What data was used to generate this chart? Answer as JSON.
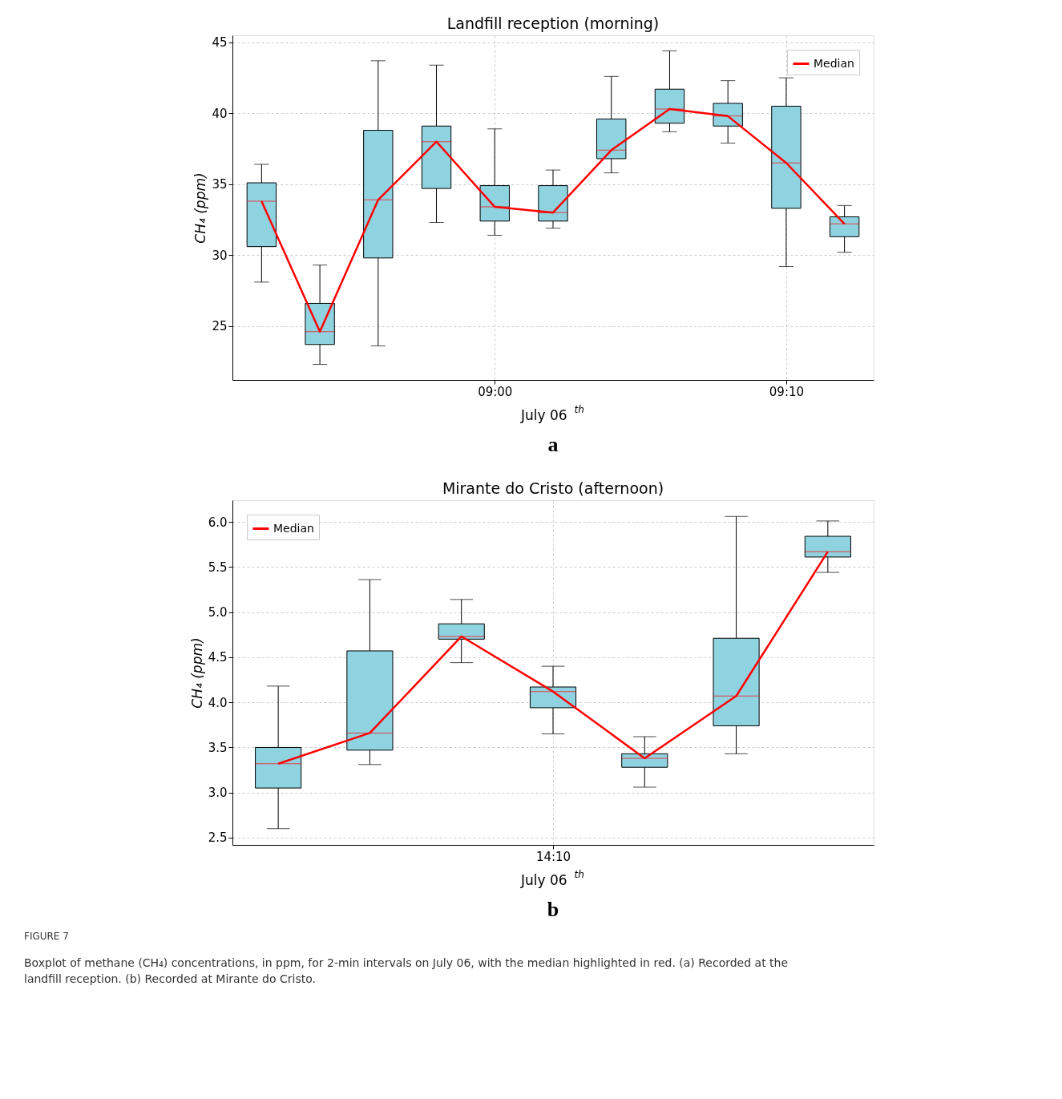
{
  "chart_data": [
    {
      "type": "box",
      "title": "Landfill reception (morning)",
      "xlabel": "July 06$^{th}$",
      "ylabel": "CH₄ (ppm)",
      "color": "#8fd3e0",
      "x": [
        8.866667,
        8.9,
        8.933333,
        8.966667,
        9,
        9.033333,
        9.066667,
        9.1,
        9.133333,
        9.166667,
        9.2
      ],
      "boxes": [
        {
          "low": 28.1,
          "q1": 30.6,
          "median": 33.8,
          "q3": 35.1,
          "high": 36.4
        },
        {
          "low": 22.3,
          "q1": 23.7,
          "median": 24.6,
          "q3": 26.6,
          "high": 29.3
        },
        {
          "low": 23.6,
          "q1": 29.8,
          "median": 33.9,
          "q3": 38.8,
          "high": 43.7
        },
        {
          "low": 32.3,
          "q1": 34.7,
          "median": 38.0,
          "q3": 39.1,
          "high": 43.4
        },
        {
          "low": 31.4,
          "q1": 32.4,
          "median": 33.4,
          "q3": 34.9,
          "high": 38.9
        },
        {
          "low": 31.9,
          "q1": 32.4,
          "median": 33.0,
          "q3": 34.9,
          "high": 36.0
        },
        {
          "low": 35.8,
          "q1": 36.8,
          "median": 37.4,
          "q3": 39.6,
          "high": 42.6
        },
        {
          "low": 38.7,
          "q1": 39.3,
          "median": 40.3,
          "q3": 41.7,
          "high": 44.4
        },
        {
          "low": 37.9,
          "q1": 39.1,
          "median": 39.8,
          "q3": 40.7,
          "high": 42.3
        },
        {
          "low": 29.2,
          "q1": 33.3,
          "median": 36.5,
          "q3": 40.5,
          "high": 42.5
        },
        {
          "low": 30.2,
          "q1": 31.3,
          "median": 32.2,
          "q3": 32.7,
          "high": 33.5
        }
      ],
      "series": [
        {
          "name": "Median",
          "type": "line",
          "color": "#ff0000",
          "values": [
            33.8,
            24.6,
            33.9,
            38.0,
            33.4,
            33.0,
            37.4,
            40.3,
            39.8,
            36.5,
            32.2
          ]
        }
      ],
      "xlim": [
        8.85,
        9.216667
      ],
      "xticks": [
        {
          "value": 9,
          "label": "09:00"
        },
        {
          "value": 9.166667,
          "label": "09:10"
        }
      ],
      "ylim": [
        21.2,
        45.5
      ],
      "yticks": [
        25,
        30,
        35,
        40,
        45
      ],
      "grid": true,
      "legend": "top right",
      "annotations": [
        "a"
      ]
    },
    {
      "type": "box",
      "title": "Mirante do Cristo (afternoon)",
      "xlabel": "July 06$^{th}$",
      "ylabel": "CH₄ (ppm)",
      "color": "#8fd3e0",
      "categories": [
        null,
        null,
        null,
        "14:10",
        null,
        null,
        null
      ],
      "boxes": [
        {
          "low": 2.6,
          "q1": 3.05,
          "median": 3.32,
          "q3": 3.5,
          "high": 4.18
        },
        {
          "low": 3.31,
          "q1": 3.47,
          "median": 3.66,
          "q3": 4.57,
          "high": 5.36
        },
        {
          "low": 4.44,
          "q1": 4.7,
          "median": 4.73,
          "q3": 4.87,
          "high": 5.14
        },
        {
          "low": 3.65,
          "q1": 3.94,
          "median": 4.12,
          "q3": 4.17,
          "high": 4.4
        },
        {
          "low": 3.06,
          "q1": 3.28,
          "median": 3.38,
          "q3": 3.43,
          "high": 3.62
        },
        {
          "low": 3.43,
          "q1": 3.74,
          "median": 4.07,
          "q3": 4.71,
          "high": 6.06
        },
        {
          "low": 5.44,
          "q1": 5.61,
          "median": 5.67,
          "q3": 5.84,
          "high": 6.01
        }
      ],
      "series": [
        {
          "name": "Median",
          "type": "line",
          "color": "#ff0000",
          "values": [
            3.32,
            3.66,
            4.73,
            4.12,
            3.38,
            4.07,
            5.67
          ]
        }
      ],
      "ylim": [
        2.42,
        6.24
      ],
      "yticks": [
        {
          "value": 2.5,
          "label": "2.5"
        },
        {
          "value": 3,
          "label": "3.0"
        },
        {
          "value": 3.5,
          "label": "3.5"
        },
        {
          "value": 4,
          "label": "4.0"
        },
        {
          "value": 4.5,
          "label": "4.5"
        },
        {
          "value": 5,
          "label": "5.0"
        },
        {
          "value": 5.5,
          "label": "5.5"
        },
        {
          "value": 6,
          "label": "6.0"
        }
      ],
      "grid": true,
      "legend": "top left",
      "annotations": [
        "b",
        "FIGURE 7",
        "Boxplot of methane (CH₄) concentrations, in ppm, for 2-min intervals on July 06, with the median highlighted in red. (a) Recorded at the landfill reception. (b) Recorded at Mirante do Cristo."
      ]
    }
  ]
}
